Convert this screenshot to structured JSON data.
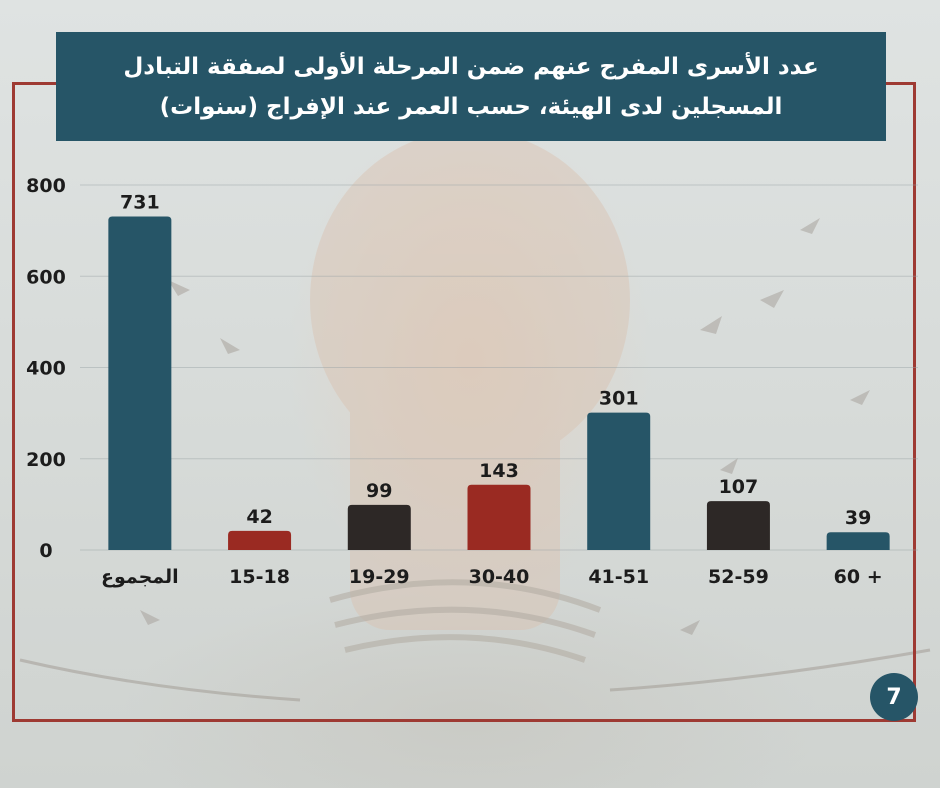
{
  "title": {
    "line1": "عدد الأسرى المفرج عنهم ضمن المرحلة الأولى لصفقة التبادل",
    "line2": "المسجلين لدى الهيئة، حسب العمر عند الإفراج (سنوات)"
  },
  "page_number": "7",
  "colors": {
    "teal": "#265567",
    "red": "#9a2a22",
    "dark": "#2d2826",
    "frame": "#9e3a33",
    "title_bg": "#265567"
  },
  "chart_data": {
    "type": "bar",
    "title": "عدد الأسرى المفرج عنهم ضمن المرحلة الأولى لصفقة التبادل المسجلين لدى الهيئة، حسب العمر عند الإفراج (سنوات)",
    "xlabel": "",
    "ylabel": "",
    "categories": [
      "المجموع",
      "15-18",
      "19-29",
      "30-40",
      "41-51",
      "52-59",
      "60 +"
    ],
    "values": [
      731,
      42,
      99,
      143,
      301,
      107,
      39
    ],
    "value_labels": [
      "731",
      "42",
      "99",
      "143",
      "301",
      "107",
      "39"
    ],
    "bar_colors": [
      "#265567",
      "#9a2a22",
      "#2d2826",
      "#9a2a22",
      "#265567",
      "#2d2826",
      "#265567"
    ],
    "ylim": [
      0,
      800
    ],
    "yticks": [
      0,
      200,
      400,
      600,
      800
    ],
    "grid": true,
    "legend": "none"
  }
}
